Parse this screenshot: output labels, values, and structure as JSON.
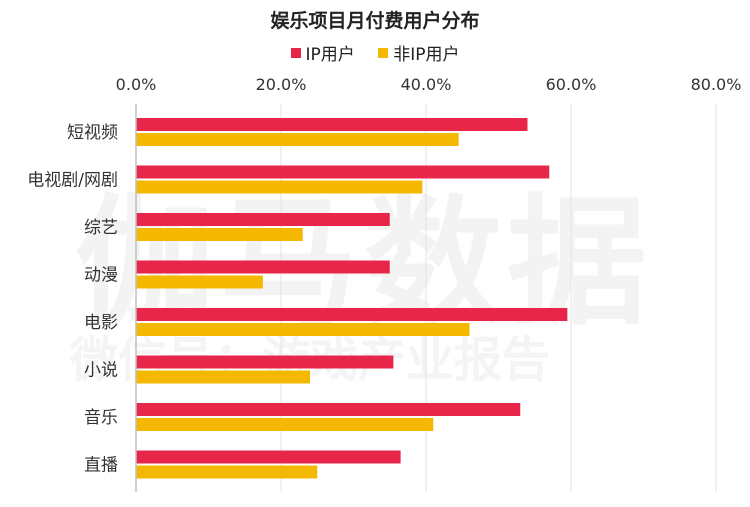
{
  "chart_data": {
    "type": "bar",
    "orientation": "horizontal",
    "title": "娱乐项目月付费用户分布",
    "categories": [
      "短视频",
      "电视剧/网剧",
      "综艺",
      "动漫",
      "电影",
      "小说",
      "音乐",
      "直播"
    ],
    "series": [
      {
        "name": "IP用户",
        "color": "#e8264a",
        "values": [
          54.0,
          57.0,
          35.0,
          35.0,
          59.5,
          35.5,
          53.0,
          36.5
        ]
      },
      {
        "name": "非IP用户",
        "color": "#f5b800",
        "values": [
          44.5,
          39.5,
          23.0,
          17.5,
          46.0,
          24.0,
          41.0,
          25.0
        ]
      }
    ],
    "xlim": [
      0,
      80
    ],
    "xticks": [
      "0.0%",
      "20.0%",
      "40.0%",
      "60.0%",
      "80.0%"
    ],
    "grid": true,
    "legend_position": "top-center",
    "watermark": [
      "伽马数据",
      "微信号：游戏产业报告"
    ]
  }
}
